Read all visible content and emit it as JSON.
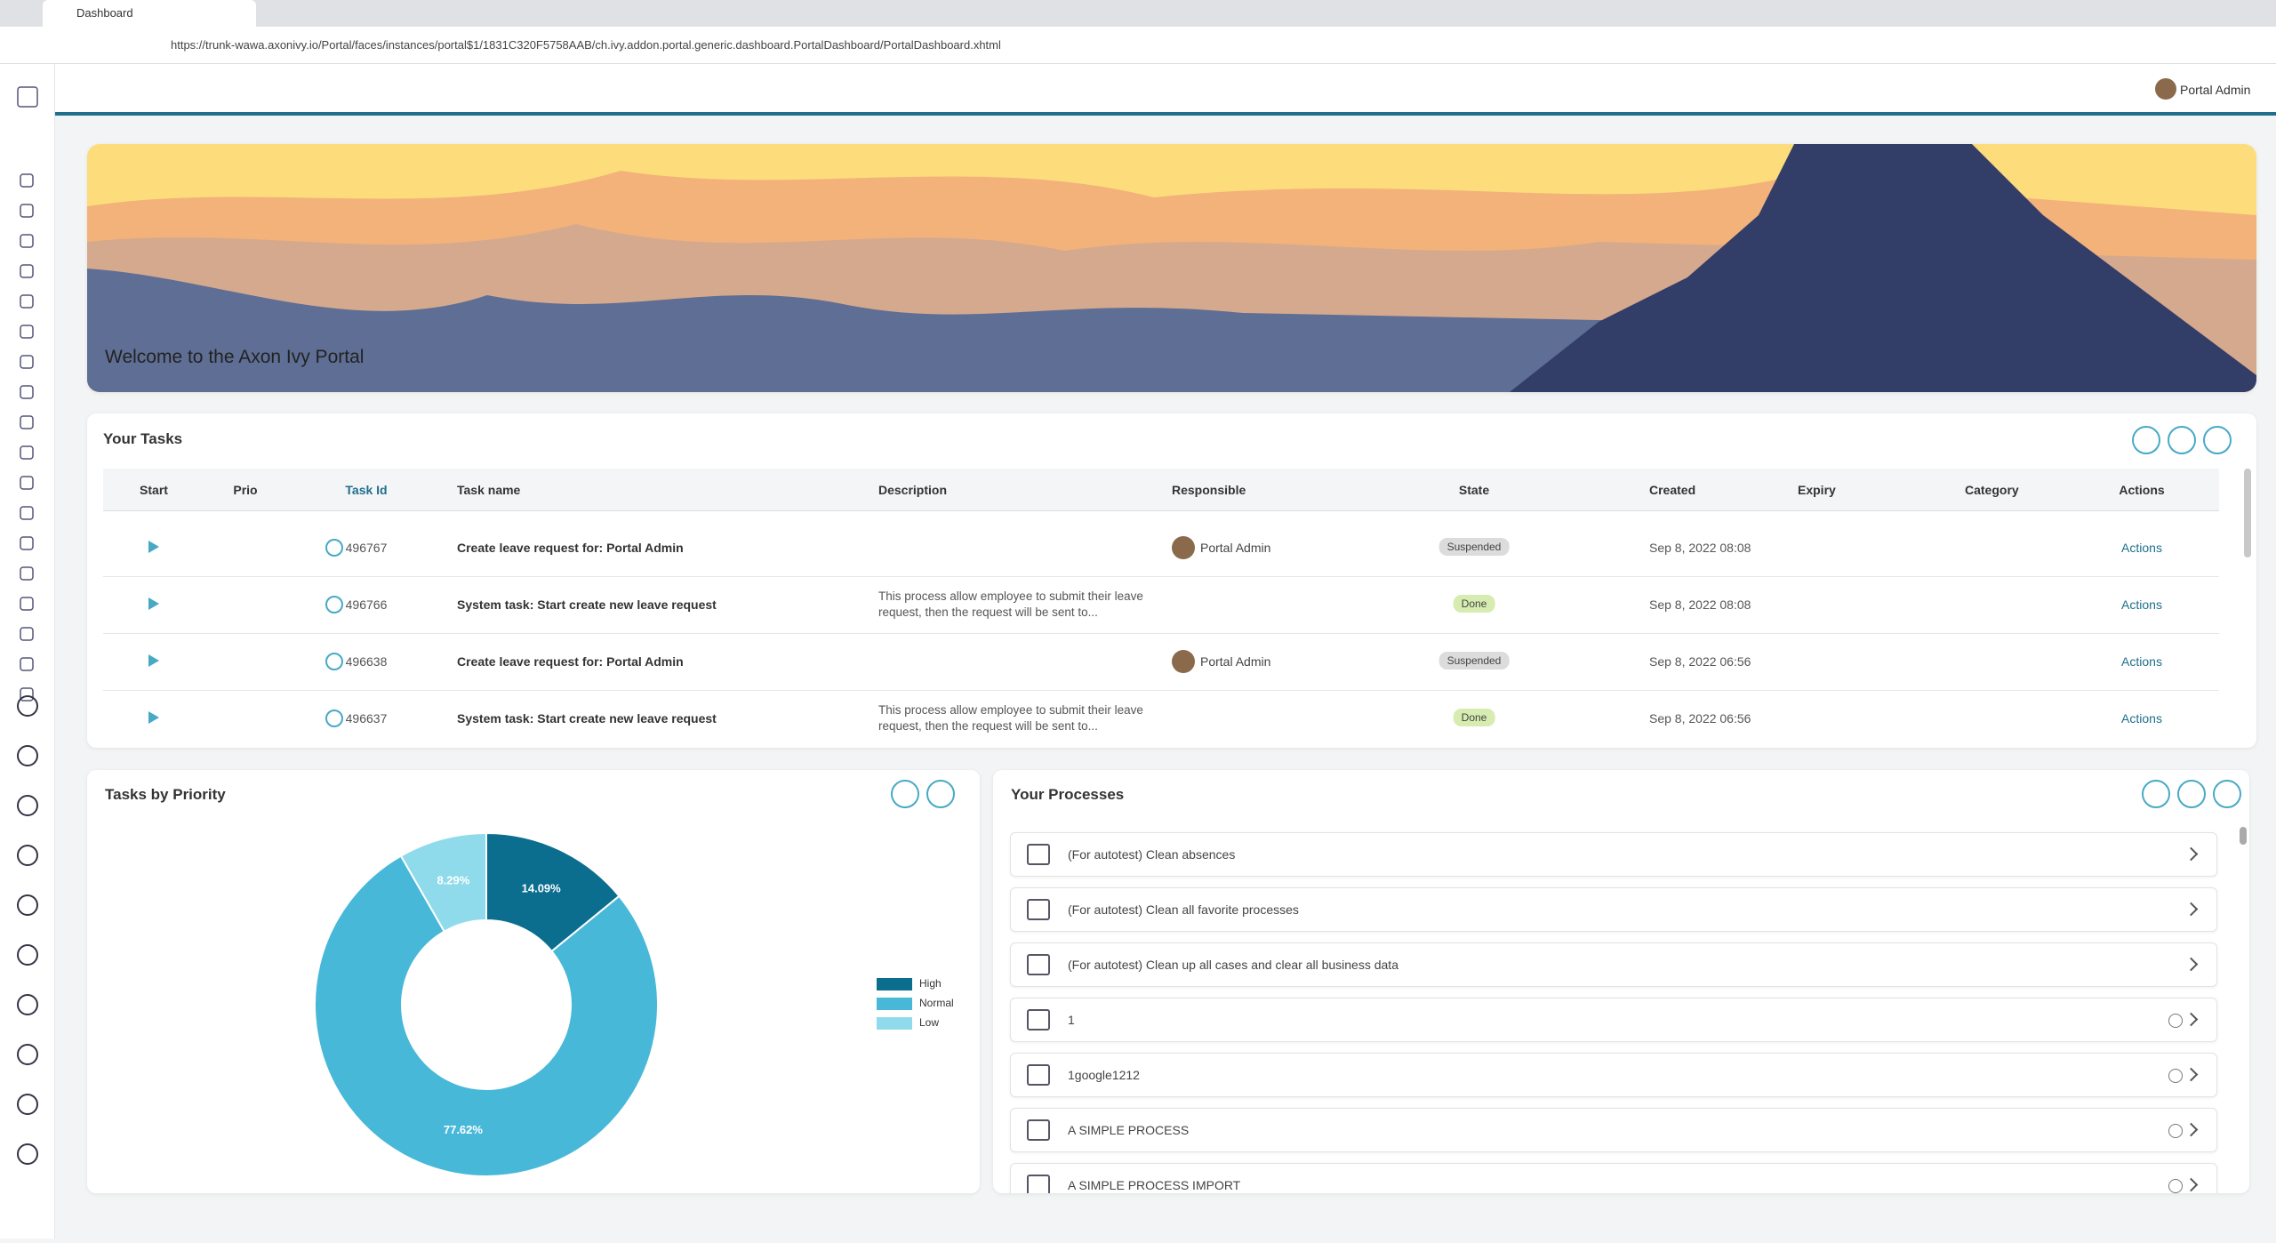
{
  "browser": {
    "tab_title": "Dashboard",
    "url": "https://trunk-wawa.axonivy.io/Portal/faces/instances/portal$1/1831C320F5758AAB/ch.ivy.addon.portal.generic.dashboard.PortalDashboard/PortalDashboard.xhtml"
  },
  "header": {
    "user": "Portal Admin"
  },
  "banner": {
    "title": "Welcome to the Axon Ivy Portal"
  },
  "tasks": {
    "title": "Your Tasks",
    "columns": [
      "Start",
      "Prio",
      "Task Id",
      "Task name",
      "Description",
      "Responsible",
      "State",
      "Created",
      "Expiry",
      "Category",
      "Actions"
    ],
    "rows": [
      {
        "id": "496767",
        "name": "Create leave request for: Portal Admin",
        "responsible": "Portal Admin",
        "state": "Suspended",
        "created": "Sep 8, 2022 08:08",
        "actions": "Actions"
      },
      {
        "id": "496766",
        "name": "System task: Start create new leave request",
        "description": "This process allow employee to submit their leave request, then the request will be sent to...",
        "state": "Done",
        "created": "Sep 8, 2022 08:08",
        "actions": "Actions"
      },
      {
        "id": "496638",
        "name": "Create leave request for: Portal Admin",
        "responsible": "Portal Admin",
        "state": "Suspended",
        "created": "Sep 8, 2022 06:56",
        "actions": "Actions"
      },
      {
        "id": "496637",
        "name": "System task: Start create new leave request",
        "description": "This process allow employee to submit their leave request, then the request will be sent to...",
        "state": "Done",
        "created": "Sep 8, 2022 06:56",
        "actions": "Actions"
      }
    ]
  },
  "chart_data": {
    "type": "pie",
    "title": "Tasks by Priority",
    "categories": [
      "High",
      "Normal",
      "Low"
    ],
    "values": [
      14.09,
      77.62,
      8.29
    ],
    "value_labels": [
      "14.09%",
      "77.62%",
      "8.29%"
    ],
    "colors": [
      "#0b6e8e",
      "#48b8d8",
      "#90dbeb"
    ],
    "donut": true
  },
  "processes": {
    "title": "Your Processes",
    "items": [
      "(For autotest) Clean absences",
      "(For autotest) Clean all favorite processes",
      "(For autotest) Clean up all cases and clear all business data",
      "1",
      "1google1212",
      "A SIMPLE PROCESS",
      "A SIMPLE PROCESS IMPORT"
    ]
  }
}
